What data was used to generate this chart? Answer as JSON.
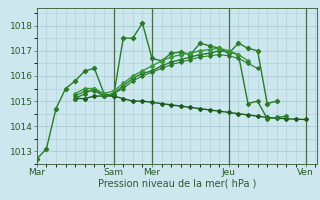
{
  "background_color": "#cce8ee",
  "grid_color": "#aaccd4",
  "xlabel": "Pression niveau de la mer( hPa )",
  "ylim": [
    1012.5,
    1018.7
  ],
  "yticks": [
    1013,
    1014,
    1015,
    1016,
    1017,
    1018
  ],
  "xlim": [
    0,
    175
  ],
  "day_ticks": [
    0,
    48,
    72,
    120,
    168
  ],
  "day_labels": [
    "Mar",
    "Sam",
    "Mer",
    "Jeu",
    "Ven"
  ],
  "vline_positions": [
    48,
    72,
    120,
    168
  ],
  "vline_color": "#4a6a4a",
  "series": [
    {
      "x": [
        0,
        6,
        12,
        18,
        24,
        30,
        36,
        42,
        48,
        54,
        60,
        66,
        72,
        78,
        84,
        90,
        96,
        102,
        108,
        114,
        120,
        126,
        132,
        138,
        144,
        150
      ],
      "y": [
        1012.7,
        1013.1,
        1014.7,
        1015.5,
        1015.8,
        1016.2,
        1016.3,
        1015.3,
        1015.2,
        1017.5,
        1017.5,
        1018.1,
        1016.7,
        1016.6,
        1016.9,
        1016.95,
        1016.85,
        1017.3,
        1017.2,
        1017.1,
        1016.9,
        1017.3,
        1017.1,
        1017.0,
        1014.9,
        1015.0
      ],
      "color": "#2a7a2a",
      "lw": 1.0,
      "marker": "D",
      "ms": 2.2
    },
    {
      "x": [
        24,
        30,
        36,
        42,
        48,
        54,
        60,
        66,
        72,
        78,
        84,
        90,
        96,
        102,
        108,
        114,
        120,
        126,
        132,
        138,
        144,
        150,
        156,
        162,
        168
      ],
      "y": [
        1015.1,
        1015.1,
        1015.2,
        1015.2,
        1015.2,
        1015.1,
        1015.0,
        1015.0,
        1014.95,
        1014.9,
        1014.85,
        1014.8,
        1014.75,
        1014.7,
        1014.65,
        1014.6,
        1014.55,
        1014.5,
        1014.45,
        1014.4,
        1014.35,
        1014.32,
        1014.3,
        1014.28,
        1014.27
      ],
      "color": "#1a5a1a",
      "lw": 1.0,
      "marker": "D",
      "ms": 2.0
    },
    {
      "x": [
        24,
        30,
        36,
        42,
        48,
        54,
        60,
        66,
        72,
        78,
        84,
        90,
        96,
        102,
        108,
        114,
        120,
        126,
        132,
        138,
        144,
        150,
        156,
        162,
        168
      ],
      "y": [
        1015.1,
        1015.3,
        1015.5,
        1015.2,
        1015.3,
        1015.6,
        1015.9,
        1016.1,
        1016.2,
        1016.4,
        1016.55,
        1016.65,
        1016.75,
        1016.85,
        1016.9,
        1017.0,
        1016.95,
        1016.85,
        1014.9,
        1015.0,
        1014.3,
        1014.35,
        1014.4,
        null,
        null
      ],
      "color": "#2a7a2a",
      "lw": 1.0,
      "marker": "D",
      "ms": 2.0
    },
    {
      "x": [
        24,
        30,
        36,
        42,
        48,
        54,
        60,
        66,
        72,
        78,
        84,
        90,
        96,
        102,
        108,
        114,
        120,
        126,
        132,
        138,
        144,
        150,
        156,
        162,
        168
      ],
      "y": [
        1015.3,
        1015.5,
        1015.5,
        1015.3,
        1015.4,
        1015.7,
        1016.0,
        1016.2,
        1016.4,
        1016.6,
        1016.75,
        1016.85,
        1016.9,
        1017.0,
        1017.05,
        1017.1,
        1017.0,
        1016.85,
        1016.6,
        null,
        null,
        null,
        null,
        null,
        null
      ],
      "color": "#3a9a3a",
      "lw": 1.0,
      "marker": "D",
      "ms": 2.0
    },
    {
      "x": [
        24,
        30,
        36,
        42,
        48,
        54,
        60,
        66,
        72,
        78,
        84,
        90,
        96,
        102,
        108,
        114,
        120,
        126,
        132,
        138,
        144,
        150,
        156,
        162,
        168
      ],
      "y": [
        1015.2,
        1015.4,
        1015.4,
        1015.2,
        1015.3,
        1015.5,
        1015.8,
        1016.0,
        1016.15,
        1016.3,
        1016.45,
        1016.55,
        1016.65,
        1016.75,
        1016.8,
        1016.85,
        1016.8,
        1016.7,
        1016.5,
        1016.3,
        null,
        null,
        null,
        null,
        null
      ],
      "color": "#2a7a2a",
      "lw": 0.8,
      "marker": "D",
      "ms": 1.8
    }
  ]
}
